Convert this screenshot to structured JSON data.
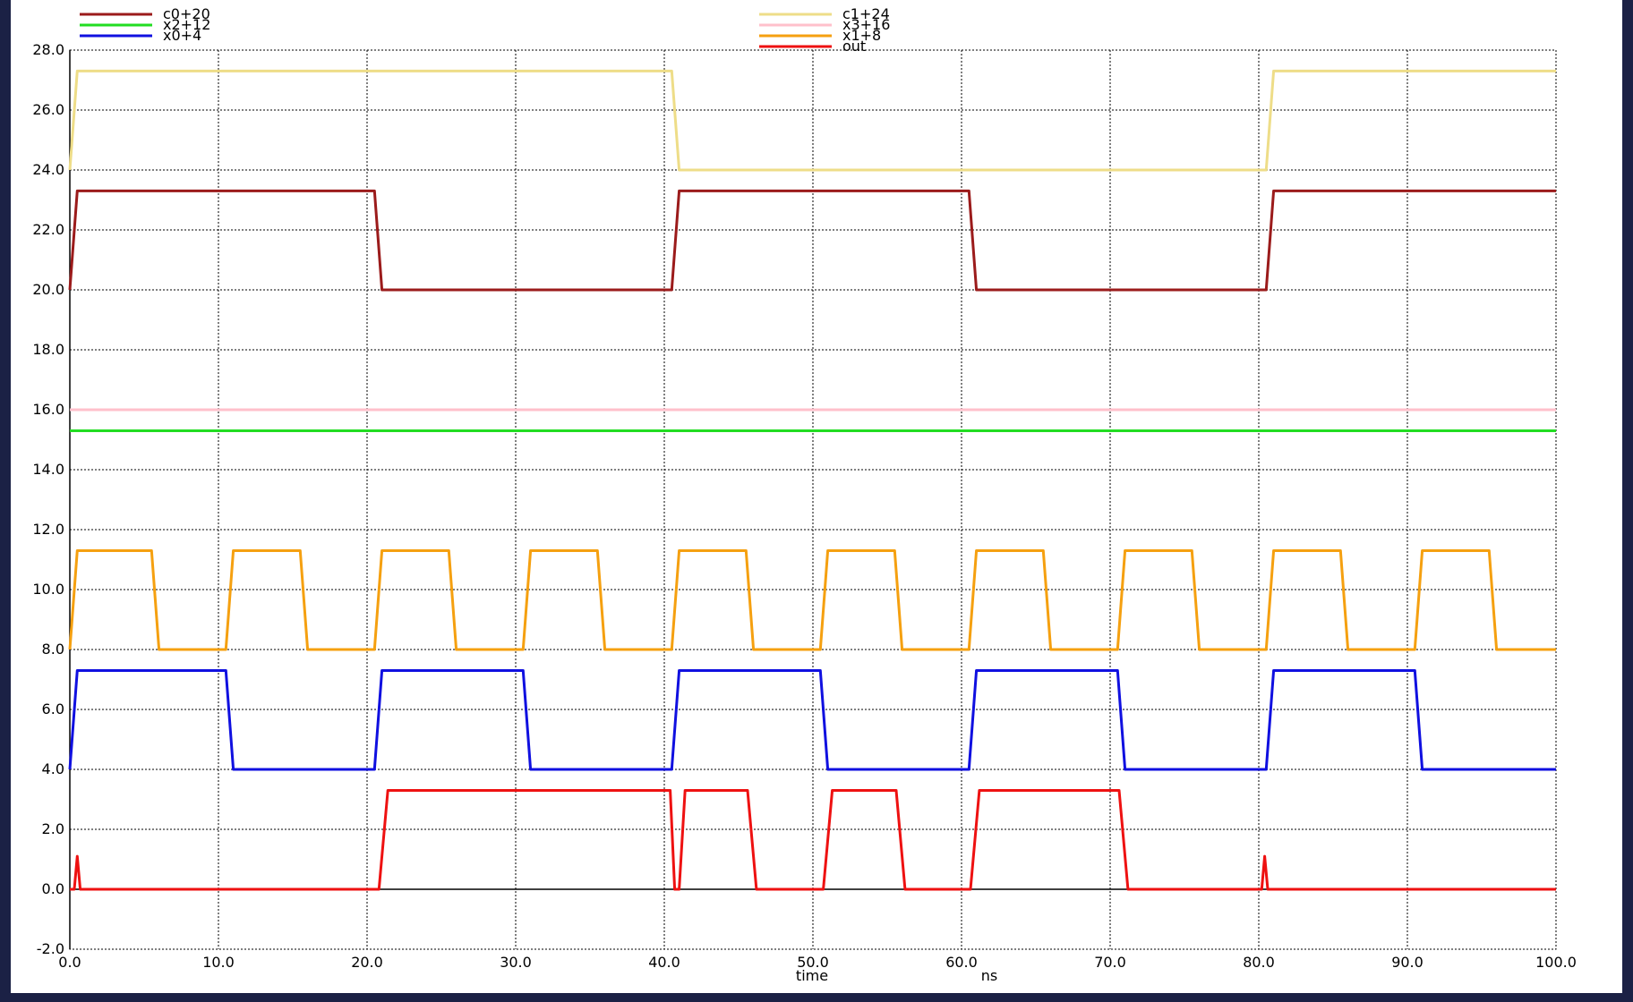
{
  "chart_data": {
    "type": "line",
    "xlabel": "time",
    "xunit": "ns",
    "xlim": [
      0,
      100
    ],
    "ylim": [
      -2,
      28
    ],
    "xticks": [
      "0.0",
      "10.0",
      "20.0",
      "30.0",
      "40.0",
      "50.0",
      "60.0",
      "70.0",
      "80.0",
      "90.0",
      "100.0"
    ],
    "yticks": [
      "-2.0",
      "0.0",
      "2.0",
      "4.0",
      "6.0",
      "8.0",
      "10.0",
      "12.0",
      "14.0",
      "16.0",
      "18.0",
      "20.0",
      "22.0",
      "24.0",
      "26.0",
      "28.0"
    ],
    "grid": true,
    "legend_position": "top",
    "series": [
      {
        "name": "c0+20",
        "color": "#9b1b1b",
        "x": [
          0,
          0.5,
          20.5,
          21,
          40.5,
          41,
          60.5,
          61,
          80.5,
          81,
          100
        ],
        "y": [
          20,
          23.3,
          23.3,
          20,
          20,
          23.3,
          23.3,
          20,
          20,
          23.3,
          23.3
        ]
      },
      {
        "name": "x2+12",
        "color": "#22dd22",
        "x": [
          0,
          100
        ],
        "y": [
          15.3,
          15.3
        ]
      },
      {
        "name": "x0+4",
        "color": "#1010e0",
        "x": [
          0,
          0.5,
          10.5,
          11,
          20.5,
          21,
          30.5,
          31,
          40.5,
          41,
          50.5,
          51,
          60.5,
          61,
          70.5,
          71,
          80.5,
          81,
          90.5,
          91,
          100
        ],
        "y": [
          4,
          7.3,
          7.3,
          4,
          4,
          7.3,
          7.3,
          4,
          4,
          7.3,
          7.3,
          4,
          4,
          7.3,
          7.3,
          4,
          4,
          7.3,
          7.3,
          4,
          4
        ]
      },
      {
        "name": "c1+24",
        "color": "#eedd88",
        "x": [
          0,
          0.5,
          40.5,
          41,
          80.5,
          81,
          100
        ],
        "y": [
          24,
          27.3,
          27.3,
          24,
          24,
          27.3,
          27.3
        ]
      },
      {
        "name": "x3+16",
        "color": "#ffc0cb",
        "x": [
          0,
          100
        ],
        "y": [
          16,
          16
        ]
      },
      {
        "name": "x1+8",
        "color": "#f5a010",
        "x": [
          0,
          0.5,
          5.5,
          6,
          10.5,
          11,
          15.5,
          16,
          20.5,
          21,
          25.5,
          26,
          30.5,
          31,
          35.5,
          36,
          40.5,
          41,
          45.5,
          46,
          50.5,
          51,
          55.5,
          56,
          60.5,
          61,
          65.5,
          66,
          70.5,
          71,
          75.5,
          76,
          80.5,
          81,
          85.5,
          86,
          90.5,
          91,
          95.5,
          96,
          100
        ],
        "y": [
          8,
          11.3,
          11.3,
          8,
          8,
          11.3,
          11.3,
          8,
          8,
          11.3,
          11.3,
          8,
          8,
          11.3,
          11.3,
          8,
          8,
          11.3,
          11.3,
          8,
          8,
          11.3,
          11.3,
          8,
          8,
          11.3,
          11.3,
          8,
          8,
          11.3,
          11.3,
          8,
          8,
          11.3,
          11.3,
          8,
          8,
          11.3,
          11.3,
          8,
          8
        ]
      },
      {
        "name": "out",
        "color": "#ee1111",
        "x": [
          0,
          0.3,
          0.5,
          0.7,
          20.8,
          21.4,
          40.4,
          40.7,
          41,
          41.4,
          45.6,
          46.2,
          50.7,
          51.3,
          55.6,
          56.2,
          60.6,
          61.2,
          70.6,
          71.2,
          80.2,
          80.4,
          80.6,
          80.8,
          100
        ],
        "y": [
          0,
          0,
          1.1,
          0,
          0,
          3.3,
          3.3,
          0,
          0,
          3.3,
          3.3,
          0,
          0,
          3.3,
          3.3,
          0,
          0,
          3.3,
          3.3,
          0,
          0,
          1.1,
          0,
          0,
          0
        ]
      }
    ]
  }
}
